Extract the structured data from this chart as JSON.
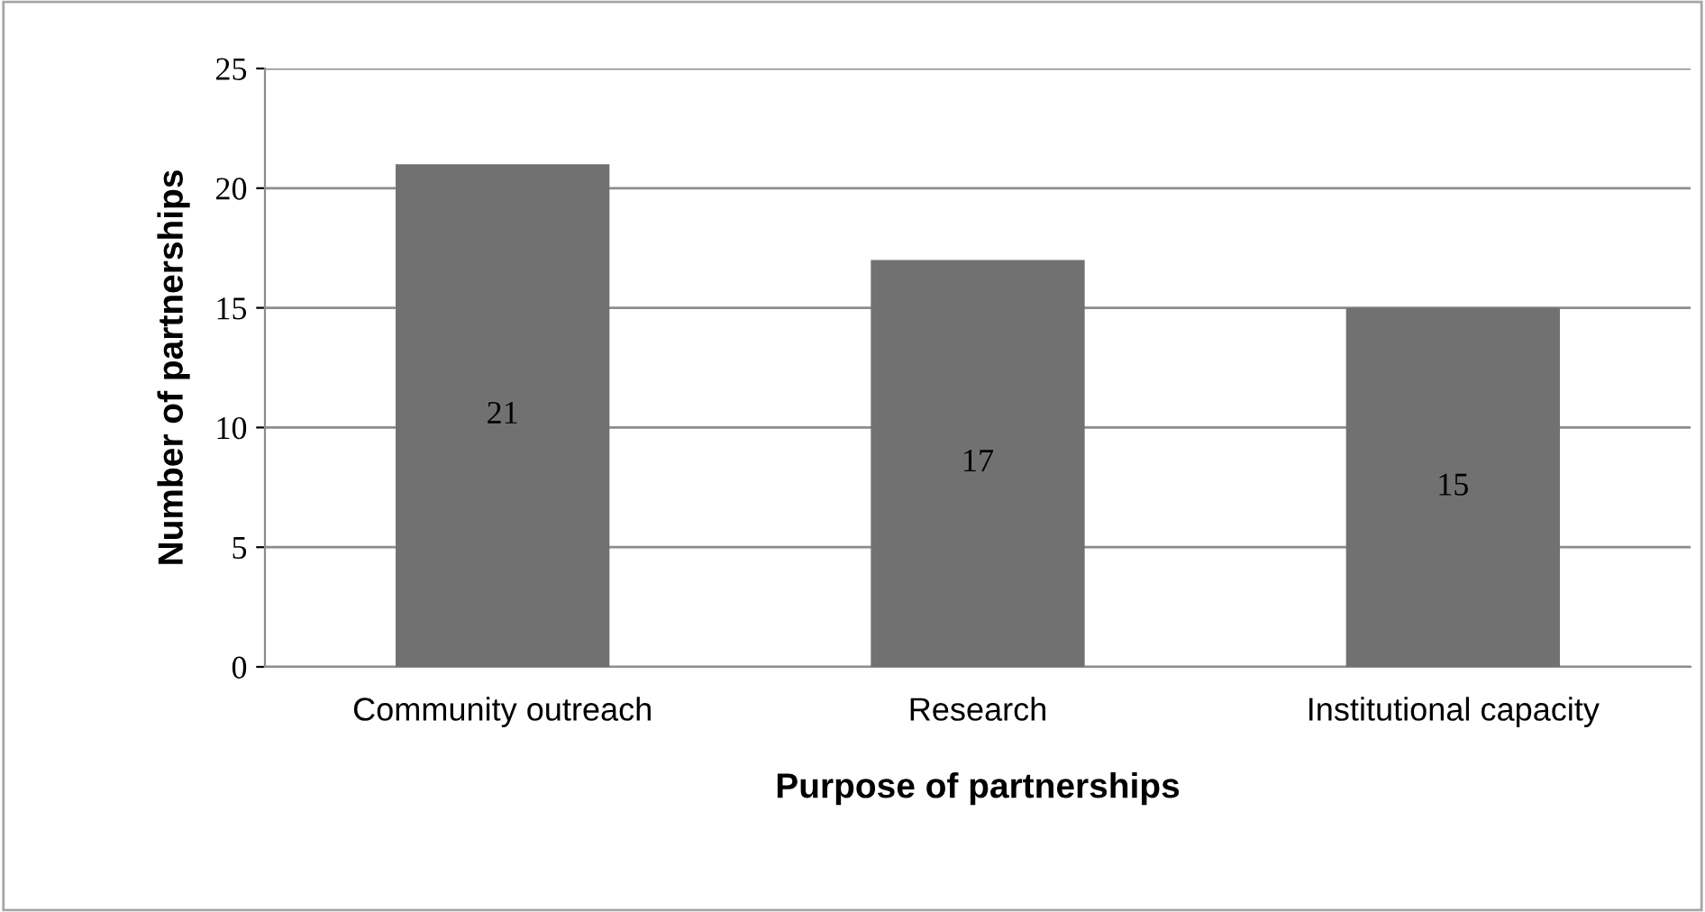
{
  "chart_data": {
    "type": "bar",
    "xlabel": "Purpose of partnerships",
    "ylabel": "Number of partnerships",
    "categories": [
      "Community outreach",
      "Research",
      "Institutional capacity"
    ],
    "values": [
      21,
      17,
      15
    ],
    "color": "#717171",
    "ylim": [
      0,
      25
    ],
    "yticks": [
      0,
      5,
      10,
      15,
      20,
      25
    ],
    "grid": "y",
    "data_labels": true,
    "legend": false
  }
}
